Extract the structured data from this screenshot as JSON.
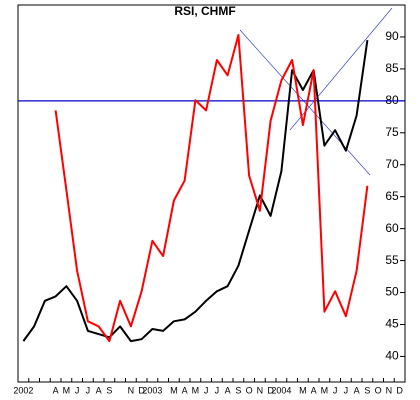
{
  "chart_data": {
    "type": "line",
    "title": "RSI, CHMF",
    "categories": [
      "2002",
      null,
      null,
      "A",
      "M",
      "J",
      "J",
      "A",
      "S",
      null,
      "N",
      "D",
      "2003",
      null,
      "M",
      "A",
      "M",
      "J",
      "J",
      "A",
      "S",
      "O",
      "N",
      "D",
      "2004",
      null,
      "M",
      "A",
      "M",
      "J",
      "J",
      "A",
      "S",
      "O",
      "N",
      "D"
    ],
    "series": [
      {
        "color": "#000000",
        "values": [
          42.4,
          44.7,
          48.7,
          49.4,
          51,
          48.7,
          44,
          43.5,
          43,
          44.7,
          42.4,
          42.7,
          44.3,
          44,
          45.5,
          45.8,
          47,
          48.7,
          50.2,
          51,
          54.2,
          59.7,
          65.2,
          62,
          69,
          84.8,
          81.7,
          84.8,
          73,
          75.4,
          72.2,
          77.7,
          89.5,
          null,
          null,
          null
        ]
      },
      {
        "color": "#ff0000",
        "values": [
          null,
          null,
          null,
          78.5,
          66,
          53.4,
          45.5,
          44.7,
          42.4,
          48.7,
          44.7,
          50.2,
          58.1,
          55.7,
          64.4,
          67.5,
          80.1,
          78.5,
          86.4,
          84,
          90.3,
          68.3,
          62.8,
          76.9,
          83.2,
          86.4,
          76.2,
          84.8,
          47,
          50.2,
          46.3,
          53.4,
          66.7,
          null,
          null,
          null
        ]
      }
    ],
    "hline": 80,
    "hline_color": "#0000cc",
    "ylim": [
      36,
      95
    ],
    "yticks": [
      40,
      45,
      50,
      55,
      60,
      65,
      70,
      75,
      80,
      85,
      90
    ]
  }
}
